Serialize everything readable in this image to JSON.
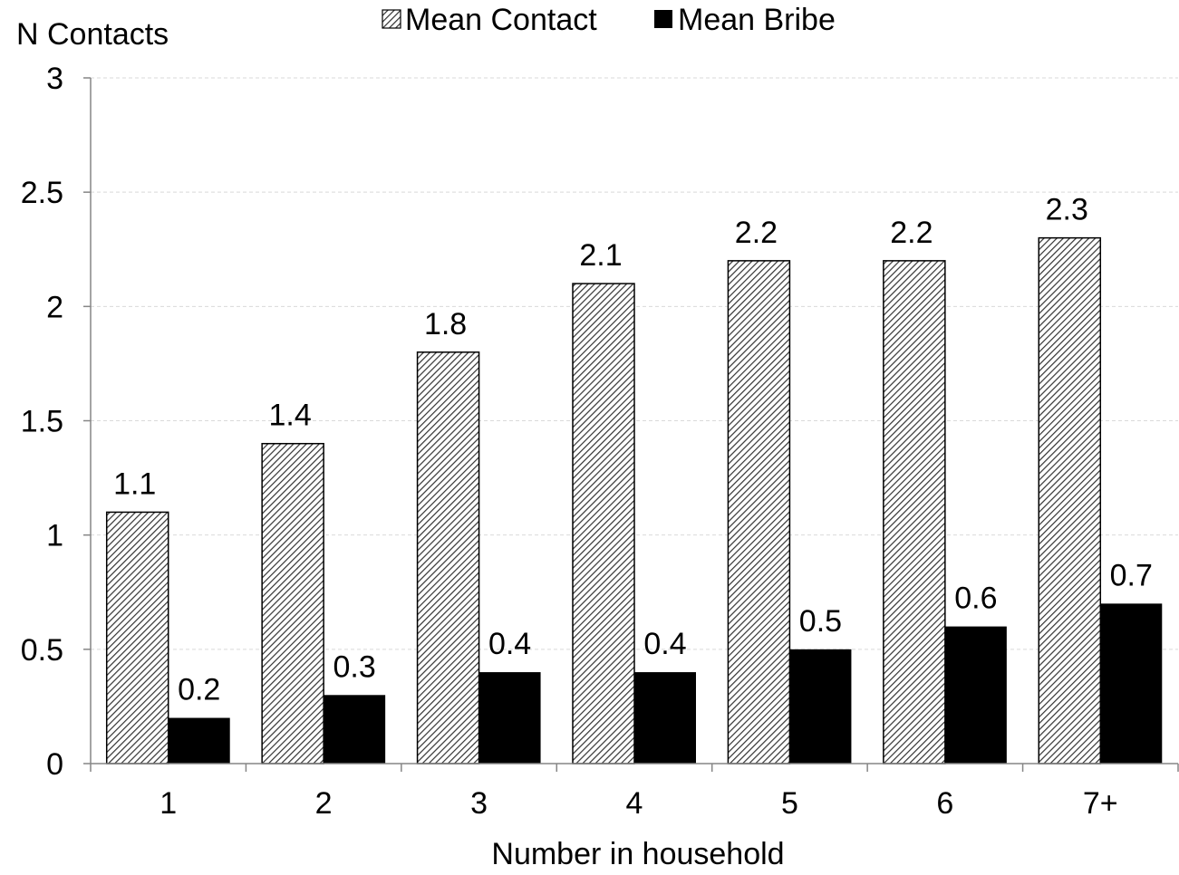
{
  "chart_data": {
    "type": "bar",
    "ylabel": "N Contacts",
    "xlabel": "Number in household",
    "categories": [
      "1",
      "2",
      "3",
      "4",
      "5",
      "6",
      "7+"
    ],
    "series": [
      {
        "name": "Mean Contact",
        "values": [
          1.1,
          1.4,
          1.8,
          2.1,
          2.2,
          2.2,
          2.3
        ],
        "labels": [
          "1.1",
          "1.4",
          "1.8",
          "2.1",
          "2.2",
          "2.2",
          "2.3"
        ],
        "fill": "hatched",
        "color": "#000000"
      },
      {
        "name": "Mean Bribe",
        "values": [
          0.2,
          0.3,
          0.4,
          0.4,
          0.5,
          0.6,
          0.7
        ],
        "labels": [
          "0.2",
          "0.3",
          "0.4",
          "0.4",
          "0.5",
          "0.6",
          "0.7"
        ],
        "fill": "solid",
        "color": "#000000"
      }
    ],
    "ylim": [
      0,
      3
    ],
    "yticks": [
      0,
      0.5,
      1,
      1.5,
      2,
      2.5,
      3
    ],
    "ytick_labels": [
      "0",
      "0.5",
      "1",
      "1.5",
      "2",
      "2.5",
      "3"
    ],
    "grid": true,
    "legend_position": "top"
  }
}
